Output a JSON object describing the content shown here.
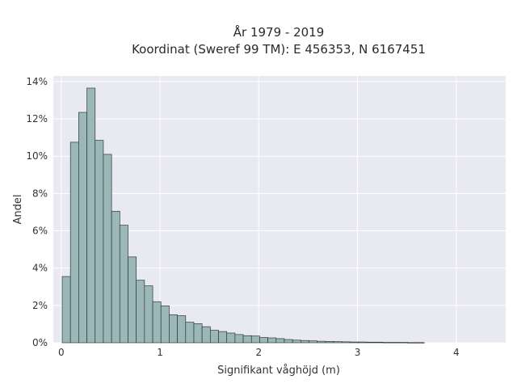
{
  "chart_data": {
    "type": "bar",
    "title_lines": [
      "År 1979 - 2019",
      "Koordinat (Sweref 99 TM): E 456353, N 6167451"
    ],
    "xlabel": "Signifikant våghöjd (m)",
    "ylabel": "Andel",
    "xlim": [
      -0.08,
      4.5
    ],
    "ylim": [
      0,
      14.3
    ],
    "x_ticks": [
      0,
      1,
      2,
      3,
      4
    ],
    "x_tick_labels": [
      "0",
      "1",
      "2",
      "3",
      "4"
    ],
    "y_ticks": [
      0,
      2,
      4,
      6,
      8,
      10,
      12,
      14
    ],
    "y_tick_labels": [
      "0%",
      "2%",
      "4%",
      "6%",
      "8%",
      "10%",
      "12%",
      "14%"
    ],
    "bin_width": 0.0833,
    "bin_start": 0.01,
    "values": [
      3.55,
      10.75,
      12.35,
      13.65,
      10.85,
      10.1,
      7.05,
      6.3,
      4.6,
      3.35,
      3.05,
      2.2,
      1.98,
      1.5,
      1.45,
      1.1,
      1.02,
      0.86,
      0.67,
      0.6,
      0.52,
      0.44,
      0.38,
      0.36,
      0.28,
      0.26,
      0.22,
      0.17,
      0.14,
      0.12,
      0.1,
      0.08,
      0.07,
      0.06,
      0.05,
      0.04,
      0.04,
      0.03,
      0.03,
      0.02,
      0.02,
      0.02,
      0.01,
      0.01
    ],
    "grid": true,
    "colors": {
      "bar_fill": "#9cb7b7",
      "bar_stroke": "#2f3a3a",
      "plot_bg": "#e9e9f1",
      "grid": "#ffffff",
      "text": "#333333"
    }
  }
}
